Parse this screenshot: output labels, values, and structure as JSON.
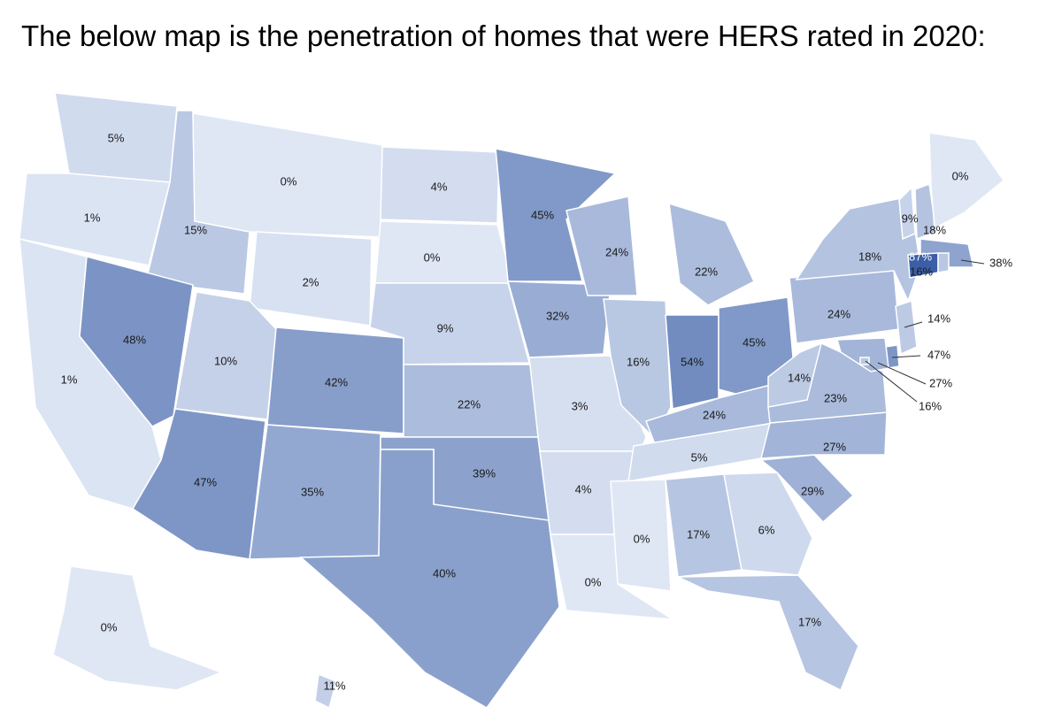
{
  "title": "The below map is the penetration of homes that were HERS rated in 2020:",
  "colors": {
    "lowest": "#dfe7f5",
    "highest": "#3b5ea6",
    "border": "#ffffff"
  },
  "states": [
    {
      "id": "WA",
      "value": "5%",
      "pct": 5
    },
    {
      "id": "OR",
      "value": "1%",
      "pct": 1
    },
    {
      "id": "CA",
      "value": "1%",
      "pct": 1
    },
    {
      "id": "ID",
      "value": "15%",
      "pct": 15
    },
    {
      "id": "NV",
      "value": "48%",
      "pct": 48
    },
    {
      "id": "MT",
      "value": "0%",
      "pct": 0
    },
    {
      "id": "WY",
      "value": "2%",
      "pct": 2
    },
    {
      "id": "UT",
      "value": "10%",
      "pct": 10
    },
    {
      "id": "AZ",
      "value": "47%",
      "pct": 47
    },
    {
      "id": "CO",
      "value": "42%",
      "pct": 42
    },
    {
      "id": "NM",
      "value": "35%",
      "pct": 35
    },
    {
      "id": "ND",
      "value": "4%",
      "pct": 4
    },
    {
      "id": "SD",
      "value": "0%",
      "pct": 0
    },
    {
      "id": "NE",
      "value": "9%",
      "pct": 9
    },
    {
      "id": "KS",
      "value": "22%",
      "pct": 22
    },
    {
      "id": "OK",
      "value": "39%",
      "pct": 39
    },
    {
      "id": "TX",
      "value": "40%",
      "pct": 40
    },
    {
      "id": "MN",
      "value": "45%",
      "pct": 45
    },
    {
      "id": "IA",
      "value": "32%",
      "pct": 32
    },
    {
      "id": "MO",
      "value": "3%",
      "pct": 3
    },
    {
      "id": "AR",
      "value": "4%",
      "pct": 4
    },
    {
      "id": "LA",
      "value": "0%",
      "pct": 0
    },
    {
      "id": "WI",
      "value": "24%",
      "pct": 24
    },
    {
      "id": "IL",
      "value": "16%",
      "pct": 16
    },
    {
      "id": "MI",
      "value": "22%",
      "pct": 22
    },
    {
      "id": "IN",
      "value": "54%",
      "pct": 54
    },
    {
      "id": "OH",
      "value": "45%",
      "pct": 45
    },
    {
      "id": "KY",
      "value": "24%",
      "pct": 24
    },
    {
      "id": "TN",
      "value": "5%",
      "pct": 5
    },
    {
      "id": "MS",
      "value": "0%",
      "pct": 0
    },
    {
      "id": "AL",
      "value": "17%",
      "pct": 17
    },
    {
      "id": "GA",
      "value": "6%",
      "pct": 6
    },
    {
      "id": "FL",
      "value": "17%",
      "pct": 17
    },
    {
      "id": "SC",
      "value": "29%",
      "pct": 29
    },
    {
      "id": "NC",
      "value": "27%",
      "pct": 27
    },
    {
      "id": "VA",
      "value": "23%",
      "pct": 23
    },
    {
      "id": "WV",
      "value": "14%",
      "pct": 14
    },
    {
      "id": "PA",
      "value": "24%",
      "pct": 24
    },
    {
      "id": "NY",
      "value": "18%",
      "pct": 18
    },
    {
      "id": "VT",
      "value": "9%",
      "pct": 9
    },
    {
      "id": "NH",
      "value": "18%",
      "pct": 18
    },
    {
      "id": "ME",
      "value": "0%",
      "pct": 0
    },
    {
      "id": "MA",
      "value": "38%",
      "pct": 38
    },
    {
      "id": "CT",
      "value": "87%",
      "pct": 87
    },
    {
      "id": "RI",
      "value": "16%",
      "pct": 16
    },
    {
      "id": "NJ",
      "value": "14%",
      "pct": 14
    },
    {
      "id": "DE",
      "value": "47%",
      "pct": 47
    },
    {
      "id": "MD",
      "value": "27%",
      "pct": 27
    },
    {
      "id": "DC",
      "value": "16%",
      "pct": 16
    },
    {
      "id": "AK",
      "value": "0%",
      "pct": 0
    },
    {
      "id": "HI",
      "value": "11%",
      "pct": 11
    }
  ]
}
